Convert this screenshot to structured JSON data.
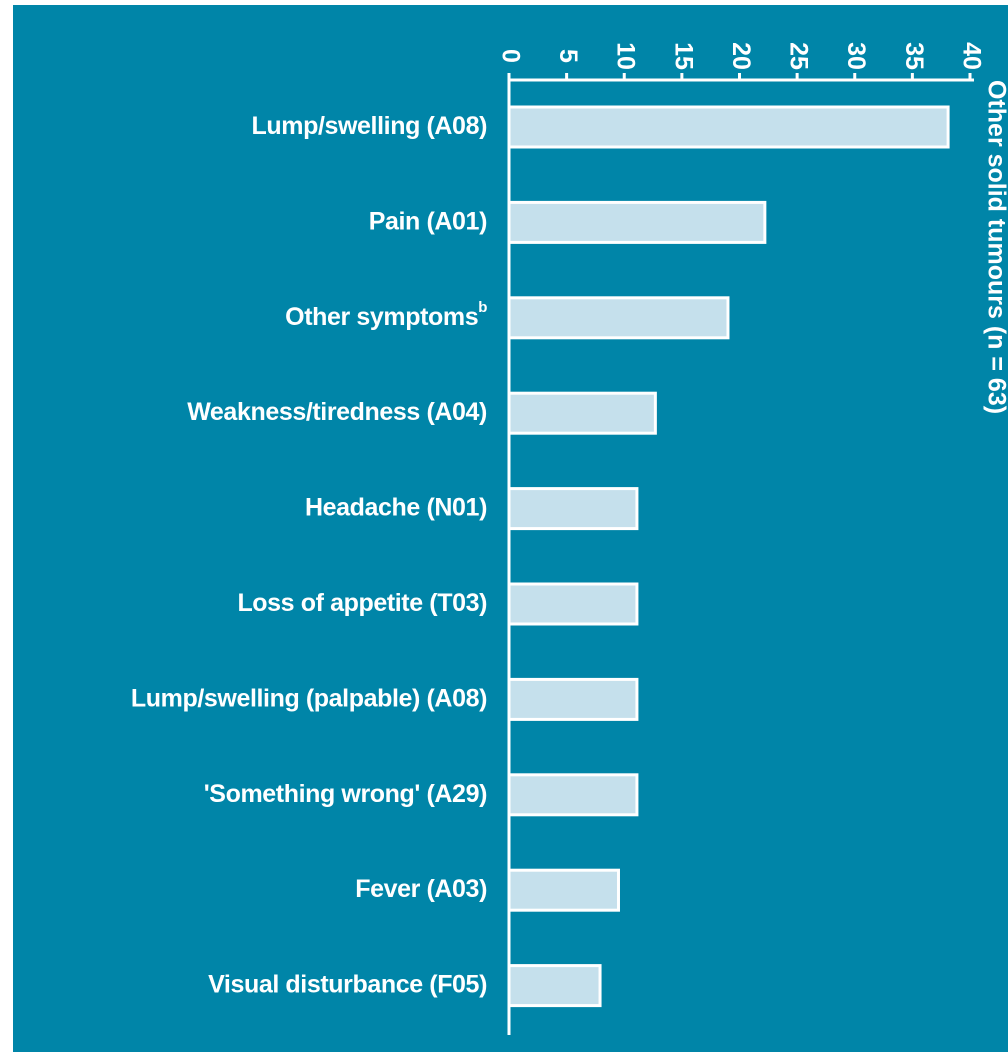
{
  "chart_data": {
    "type": "barh",
    "title": "Other solid tumours (n = 63)",
    "categories": [
      "Lump/swelling (A08)",
      "Pain (A01)",
      "Other symptoms",
      "Weakness/tiredness (A04)",
      "Headache (N01)",
      "Loss of appetite (T03)",
      "Lump/swelling (palpable) (A08)",
      "'Something wrong' (A29)",
      "Fever (A03)",
      "Visual disturbance (F05)"
    ],
    "other_symptoms_note": "b",
    "values": [
      38.1,
      22.2,
      19.0,
      12.7,
      11.1,
      11.1,
      11.1,
      11.1,
      9.5,
      7.9
    ],
    "color": "#c5e0ec",
    "xlim": [
      0,
      40
    ],
    "xticks": [
      0,
      5,
      10,
      15,
      20,
      25,
      30,
      35,
      40
    ],
    "background": "#0085a8"
  }
}
